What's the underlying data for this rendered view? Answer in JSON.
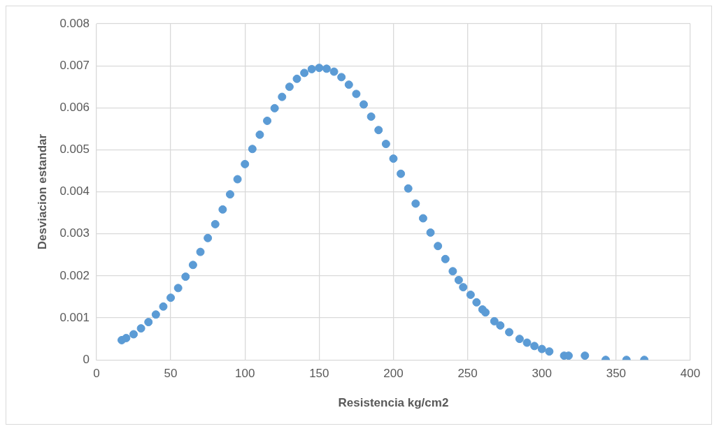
{
  "chart_data": {
    "type": "scatter",
    "xlabel": "Resistencia kg/cm2",
    "ylabel": "Desviacion estandar",
    "xlim": [
      0,
      400
    ],
    "xticks": [
      0,
      50,
      100,
      150,
      200,
      250,
      300,
      350,
      400
    ],
    "ylim": [
      0,
      0.008
    ],
    "yticks": [
      0,
      0.001,
      0.002,
      0.003,
      0.004,
      0.005,
      0.006,
      0.007,
      0.008
    ],
    "grid": true,
    "legend": false,
    "marker": "circle",
    "series": [
      {
        "color": "#5b9bd5",
        "x": [
          17,
          20,
          25,
          30,
          35,
          40,
          45,
          50,
          55,
          60,
          65,
          70,
          75,
          80,
          85,
          90,
          95,
          100,
          105,
          110,
          115,
          120,
          125,
          130,
          135,
          140,
          145,
          150,
          155,
          160,
          165,
          170,
          175,
          180,
          185,
          190,
          195,
          200,
          205,
          210,
          215,
          220,
          225,
          230,
          235,
          240,
          244,
          247,
          252,
          256,
          260,
          262,
          268,
          272,
          278,
          285,
          290,
          295,
          300,
          305,
          315,
          318,
          329,
          343,
          357,
          369
        ],
        "values": [
          0.00047,
          0.00052,
          0.00061,
          0.00075,
          0.0009,
          0.00108,
          0.00127,
          0.00148,
          0.00171,
          0.00198,
          0.00226,
          0.00257,
          0.0029,
          0.00323,
          0.00358,
          0.00394,
          0.0043,
          0.00466,
          0.00502,
          0.00536,
          0.00569,
          0.00599,
          0.00626,
          0.0065,
          0.00669,
          0.00683,
          0.00692,
          0.00695,
          0.00693,
          0.00686,
          0.00673,
          0.00655,
          0.00633,
          0.00608,
          0.00579,
          0.00547,
          0.00514,
          0.00479,
          0.00443,
          0.00408,
          0.00372,
          0.00337,
          0.00303,
          0.00271,
          0.0024,
          0.00211,
          0.0019,
          0.00173,
          0.00155,
          0.00137,
          0.0012,
          0.00113,
          0.00092,
          0.00082,
          0.00066,
          0.0005,
          0.00041,
          0.00033,
          0.00026,
          0.0002,
          0.0001,
          0.0001,
          0.0001,
          0,
          0,
          0
        ]
      }
    ]
  }
}
